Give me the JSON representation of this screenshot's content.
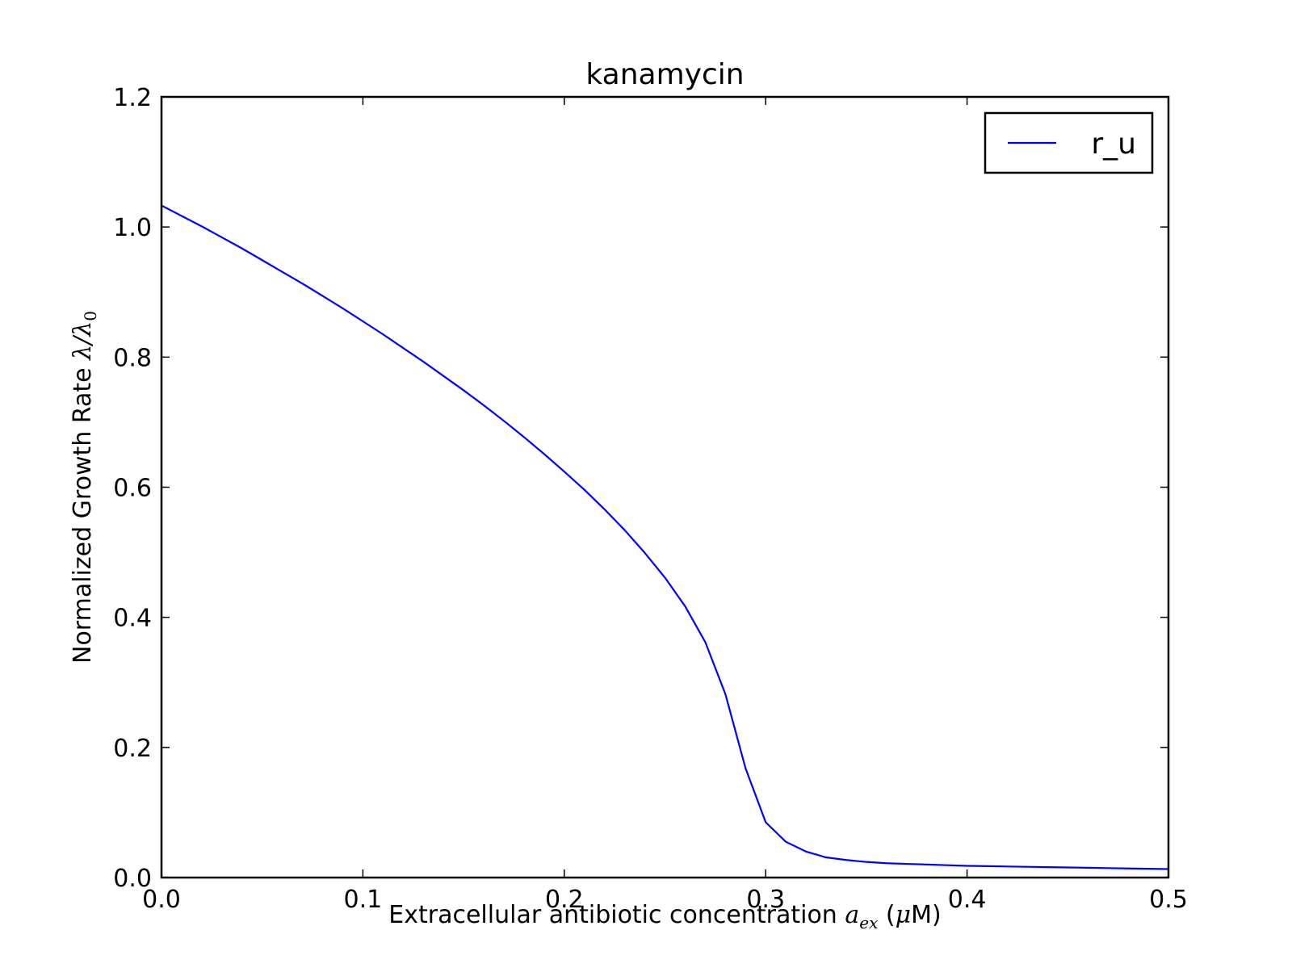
{
  "chart_data": {
    "type": "line",
    "title": "kanamycin",
    "xlabel": {
      "prefix": "Extracellular antibiotic concentration ",
      "symbol": "a",
      "subscript": "ex",
      "unit_open": " (",
      "unit_symbol": "μ",
      "unit_rest": "M)"
    },
    "ylabel": {
      "prefix": "Normalized Growth Rate ",
      "symbol": "λ/λ",
      "subscript": "0"
    },
    "xlim": [
      0.0,
      0.5
    ],
    "ylim": [
      0.0,
      1.2
    ],
    "xticks": [
      0.0,
      0.1,
      0.2,
      0.3,
      0.4,
      0.5
    ],
    "xtick_labels": [
      "0.0",
      "0.1",
      "0.2",
      "0.3",
      "0.4",
      "0.5"
    ],
    "yticks": [
      0.0,
      0.2,
      0.4,
      0.6,
      0.8,
      1.0,
      1.2
    ],
    "ytick_labels": [
      "0.0",
      "0.2",
      "0.4",
      "0.6",
      "0.8",
      "1.0",
      "1.2"
    ],
    "grid": false,
    "legend_position": "top-right",
    "series": [
      {
        "name": "r_u",
        "color": "#0000ff",
        "x": [
          0.0,
          0.01,
          0.02,
          0.03,
          0.04,
          0.05,
          0.06,
          0.07,
          0.08,
          0.09,
          0.1,
          0.11,
          0.12,
          0.13,
          0.14,
          0.15,
          0.16,
          0.17,
          0.18,
          0.19,
          0.2,
          0.21,
          0.22,
          0.23,
          0.24,
          0.25,
          0.26,
          0.27,
          0.28,
          0.29,
          0.3,
          0.31,
          0.32,
          0.33,
          0.34,
          0.35,
          0.36,
          0.37,
          0.38,
          0.39,
          0.4,
          0.41,
          0.42,
          0.43,
          0.44,
          0.45,
          0.46,
          0.47,
          0.48,
          0.49,
          0.5
        ],
        "y": [
          1.033,
          1.017,
          1.001,
          0.984,
          0.967,
          0.949,
          0.931,
          0.913,
          0.894,
          0.875,
          0.855,
          0.835,
          0.814,
          0.793,
          0.771,
          0.749,
          0.726,
          0.702,
          0.677,
          0.651,
          0.624,
          0.596,
          0.566,
          0.534,
          0.499,
          0.461,
          0.417,
          0.362,
          0.282,
          0.168,
          0.085,
          0.055,
          0.04,
          0.031,
          0.027,
          0.024,
          0.022,
          0.021,
          0.02,
          0.019,
          0.018,
          0.0175,
          0.017,
          0.0165,
          0.016,
          0.0155,
          0.015,
          0.0145,
          0.014,
          0.0135,
          0.013
        ]
      }
    ]
  }
}
